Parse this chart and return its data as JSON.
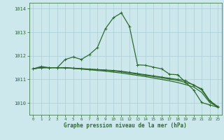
{
  "background_color": "#cde8ec",
  "grid_color": "#aacdd4",
  "line_color": "#2d6b2d",
  "title": "Graphe pression niveau de la mer (hPa)",
  "ylabel_ticks": [
    1010,
    1011,
    1012,
    1013,
    1014
  ],
  "xlim": [
    -0.5,
    23.5
  ],
  "ylim": [
    1009.5,
    1014.25
  ],
  "xticks": [
    0,
    1,
    2,
    3,
    4,
    5,
    6,
    7,
    8,
    9,
    10,
    11,
    12,
    13,
    14,
    15,
    16,
    17,
    18,
    19,
    20,
    21,
    22,
    23
  ],
  "series": [
    {
      "y": [
        1011.45,
        1011.55,
        1011.5,
        1011.5,
        1011.85,
        1011.95,
        1011.85,
        1012.05,
        1012.35,
        1013.15,
        1013.62,
        1013.82,
        1013.25,
        1011.62,
        1011.6,
        1011.52,
        1011.45,
        1011.22,
        1011.2,
        1010.88,
        1010.55,
        1010.02,
        1009.92,
        1009.82
      ],
      "markers": true,
      "lw": 0.9
    },
    {
      "y": [
        1011.45,
        1011.5,
        1011.5,
        1011.5,
        1011.5,
        1011.48,
        1011.46,
        1011.44,
        1011.42,
        1011.4,
        1011.38,
        1011.35,
        1011.3,
        1011.25,
        1011.2,
        1011.15,
        1011.1,
        1011.05,
        1011.0,
        1010.95,
        1010.75,
        1010.6,
        1010.1,
        1009.85
      ],
      "markers": true,
      "lw": 0.9
    },
    {
      "y": [
        1011.45,
        1011.5,
        1011.5,
        1011.5,
        1011.49,
        1011.47,
        1011.45,
        1011.43,
        1011.41,
        1011.39,
        1011.36,
        1011.32,
        1011.27,
        1011.22,
        1011.17,
        1011.12,
        1011.07,
        1011.01,
        1010.96,
        1010.87,
        1010.78,
        1010.55,
        1010.08,
        1009.84
      ],
      "markers": false,
      "lw": 0.9
    },
    {
      "y": [
        1011.45,
        1011.5,
        1011.5,
        1011.5,
        1011.49,
        1011.47,
        1011.44,
        1011.41,
        1011.38,
        1011.35,
        1011.31,
        1011.27,
        1011.22,
        1011.17,
        1011.12,
        1011.06,
        1011.0,
        1010.94,
        1010.87,
        1010.78,
        1010.68,
        1010.45,
        1010.02,
        1009.84
      ],
      "markers": false,
      "lw": 0.9
    }
  ]
}
